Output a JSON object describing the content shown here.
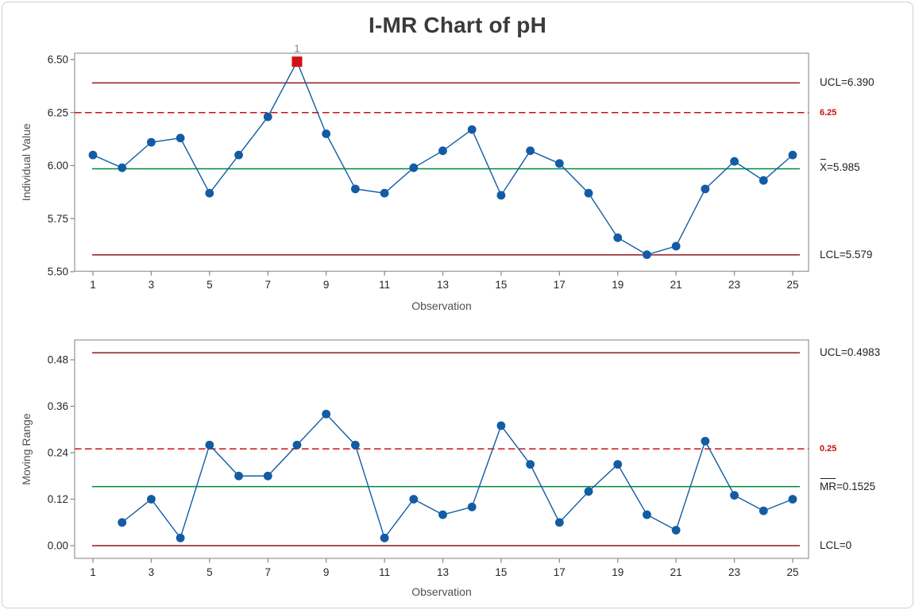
{
  "title": "I-MR Chart of pH",
  "colors": {
    "series_blue": "#125CA4",
    "center_green": "#00873C",
    "control_limit_red": "#8E1A1A",
    "spec_red": "#C9100F",
    "out_of_control_red": "#D21114",
    "flag_gray": "#7E7E7E"
  },
  "chart_data": [
    {
      "type": "line",
      "name": "individuals",
      "xlabel": "Observation",
      "ylabel": "Individual Value",
      "x": [
        1,
        2,
        3,
        4,
        5,
        6,
        7,
        8,
        9,
        10,
        11,
        12,
        13,
        14,
        15,
        16,
        17,
        18,
        19,
        20,
        21,
        22,
        23,
        24,
        25
      ],
      "values": [
        6.05,
        5.99,
        6.11,
        6.13,
        5.87,
        6.05,
        6.23,
        6.49,
        6.15,
        5.89,
        5.87,
        5.99,
        6.07,
        6.17,
        5.86,
        6.07,
        6.01,
        5.87,
        5.66,
        5.58,
        5.62,
        5.89,
        6.02,
        5.93,
        6.05
      ],
      "center_line": 5.985,
      "ucl": 6.39,
      "lcl": 5.579,
      "spec_line": 6.25,
      "ylim": [
        5.497,
        6.532
      ],
      "yticks": [
        {
          "v": 5.5,
          "label": "5.50"
        },
        {
          "v": 5.75,
          "label": "5.75"
        },
        {
          "v": 6.0,
          "label": "6.00"
        },
        {
          "v": 6.25,
          "label": "6.25"
        },
        {
          "v": 6.5,
          "label": "6.50"
        }
      ],
      "xticks": [
        1,
        3,
        5,
        7,
        9,
        11,
        13,
        15,
        17,
        19,
        21,
        23,
        25
      ],
      "out_of_control": [
        {
          "obs": 8,
          "value": 6.49,
          "flag": "1"
        }
      ],
      "labels": {
        "ucl": "UCL=6.390",
        "spec": "6.25",
        "center_bar": "X",
        "center_rest": "=5.985",
        "lcl": "LCL=5.579"
      }
    },
    {
      "type": "line",
      "name": "moving-range",
      "xlabel": "Observation",
      "ylabel": "Moving Range",
      "x": [
        2,
        3,
        4,
        5,
        6,
        7,
        8,
        9,
        10,
        11,
        12,
        13,
        14,
        15,
        16,
        17,
        18,
        19,
        20,
        21,
        22,
        23,
        24,
        25
      ],
      "values": [
        0.06,
        0.12,
        0.02,
        0.26,
        0.18,
        0.18,
        0.26,
        0.34,
        0.26,
        0.02,
        0.12,
        0.08,
        0.1,
        0.31,
        0.21,
        0.06,
        0.14,
        0.21,
        0.08,
        0.04,
        0.27,
        0.13,
        0.09,
        0.12
      ],
      "center_line": 0.1525,
      "ucl": 0.4983,
      "lcl": 0,
      "spec_line": 0.25,
      "ylim": [
        -0.033,
        0.531
      ],
      "yticks": [
        {
          "v": 0.0,
          "label": "0.00"
        },
        {
          "v": 0.12,
          "label": "0.12"
        },
        {
          "v": 0.24,
          "label": "0.24"
        },
        {
          "v": 0.36,
          "label": "0.36"
        },
        {
          "v": 0.48,
          "label": "0.48"
        }
      ],
      "xticks": [
        1,
        3,
        5,
        7,
        9,
        11,
        13,
        15,
        17,
        19,
        21,
        23,
        25
      ],
      "out_of_control": [],
      "labels": {
        "ucl": "UCL=0.4983",
        "spec": "0.25",
        "center_bar": "MR",
        "center_rest": "=0.1525",
        "lcl": "LCL=0"
      }
    }
  ]
}
